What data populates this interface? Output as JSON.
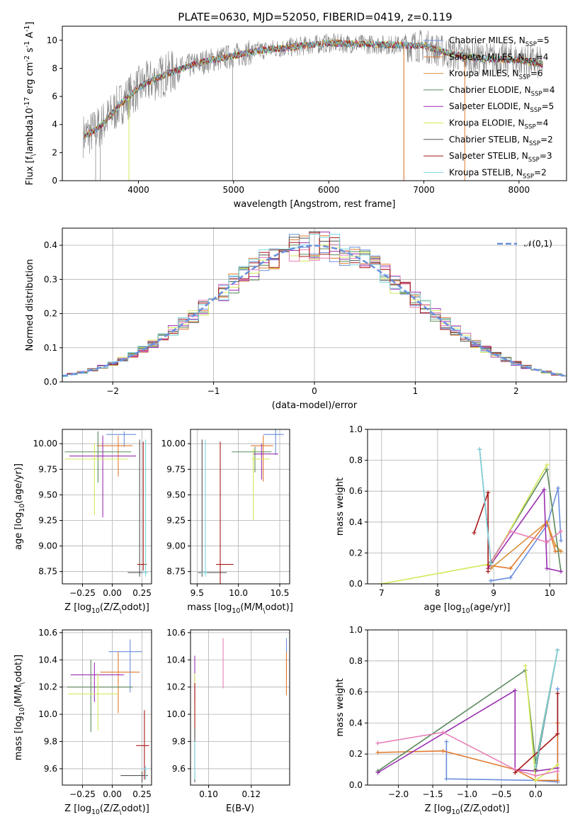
{
  "figure_title": "PLATE=0630, MJD=52050, FIBERID=0419, z=0.119",
  "colors": {
    "chabrier_miles": "#6a8fdc",
    "salpeter_miles": "#e07a2e",
    "kroupa_miles": "#d8913a",
    "chabrier_elodie": "#5c8a5c",
    "salpeter_elodie": "#9a2fb0",
    "kroupa_elodie": "#d4e85a",
    "chabrier_stelib": "#555555",
    "salpeter_stelib": "#a81818",
    "kroupa_stelib": "#7fd6e0",
    "data": "#808080",
    "pink": "#e87fb8",
    "gaussian": "#6a8fdc"
  },
  "legend": [
    {
      "name": "Chabrier MILES, N$_{SSP}$=5",
      "color_key": "chabrier_miles"
    },
    {
      "name": "Salpeter MILES, N$_{SSP}$=4",
      "color_key": "salpeter_miles"
    },
    {
      "name": "Kroupa MILES, N$_{SSP}$=6",
      "color_key": "kroupa_miles"
    },
    {
      "name": "Chabrier ELODIE, N$_{SSP}$=4",
      "color_key": "chabrier_elodie"
    },
    {
      "name": "Salpeter ELODIE, N$_{SSP}$=5",
      "color_key": "salpeter_elodie"
    },
    {
      "name": "Kroupa ELODIE, N$_{SSP}$=4",
      "color_key": "kroupa_elodie"
    },
    {
      "name": "Chabrier STELIB, N$_{SSP}$=2",
      "color_key": "chabrier_stelib"
    },
    {
      "name": "Salpeter STELIB, N$_{SSP}$=3",
      "color_key": "salpeter_stelib"
    },
    {
      "name": "Kroupa STELIB, N$_{SSP}$=2",
      "color_key": "kroupa_stelib"
    }
  ],
  "chart_data": [
    {
      "id": "spectrum",
      "type": "line",
      "xlabel": "wavelength [Angstrom, rest frame]",
      "ylabel": "Flux [f$_\\lambda$10$^{-17}$ erg cm$^{-2}$ s$^{-1}$ A$^{-1}$]",
      "xlim": [
        3200,
        8500
      ],
      "ylim": [
        0,
        11
      ],
      "xticks": [
        4000,
        5000,
        6000,
        7000,
        8000
      ],
      "yticks": [
        0,
        2,
        4,
        6,
        8,
        10
      ],
      "grid": false,
      "legend_position": "right",
      "model_continuum": {
        "x": [
          3420,
          3500,
          3600,
          3700,
          3800,
          3900,
          4000,
          4100,
          4300,
          4500,
          4700,
          5000,
          5300,
          5600,
          6000,
          6500,
          7000,
          7300,
          7600,
          8000,
          8250
        ],
        "y": [
          3.2,
          3.4,
          3.9,
          4.6,
          5.4,
          6.0,
          6.6,
          7.0,
          7.6,
          8.1,
          8.5,
          8.9,
          9.3,
          9.5,
          9.8,
          9.7,
          9.6,
          9.0,
          8.7,
          8.6,
          8.3
        ]
      }
    },
    {
      "id": "residuals",
      "type": "histogram",
      "xlabel": "(data-model)/error",
      "ylabel": "Normed distribution",
      "xlim": [
        -2.5,
        2.5
      ],
      "ylim": [
        0,
        0.45
      ],
      "xticks": [
        -2,
        -1,
        0,
        1,
        2
      ],
      "yticks": [
        0.0,
        0.1,
        0.2,
        0.3,
        0.4
      ],
      "grid": true,
      "bin_width": 0.1,
      "gaussian_label": "$\\mathcal{N}(0,1)$",
      "legend_position": "top-right"
    },
    {
      "id": "age_vs_Z",
      "type": "errorbar",
      "xlabel": "Z [log$_{10}$($Z/Z_\\odot$)]",
      "ylabel": "age  [log$_{10}$($age/yr$)]",
      "xlim": [
        -0.42,
        0.33
      ],
      "ylim": [
        8.63,
        10.14
      ],
      "xticks": [
        -0.25,
        0.0,
        0.25
      ],
      "yticks": [
        8.75,
        9.0,
        9.25,
        9.5,
        9.75,
        10.0
      ],
      "grid": true,
      "points": [
        {
          "c": "chabrier_miles",
          "x": 0.1,
          "y": 10.09,
          "xerr": [
            0.15,
            0.1
          ],
          "yerr": [
            0.12,
            0.03
          ]
        },
        {
          "c": "salpeter_miles",
          "x": 0.05,
          "y": 9.98,
          "xerr": [
            0.18,
            0.12
          ],
          "yerr": [
            0.3,
            0.1
          ]
        },
        {
          "c": "chabrier_elodie",
          "x": -0.12,
          "y": 9.92,
          "xerr": [
            0.28,
            0.28
          ],
          "yerr": [
            0.3,
            0.2
          ]
        },
        {
          "c": "salpeter_elodie",
          "x": -0.08,
          "y": 9.88,
          "xerr": [
            0.28,
            0.28
          ],
          "yerr": [
            0.6,
            0.2
          ]
        },
        {
          "c": "kroupa_elodie",
          "x": -0.15,
          "y": 9.85,
          "xerr": [
            0.25,
            0.28
          ],
          "yerr": [
            0.55,
            0.15
          ]
        },
        {
          "c": "chabrier_stelib",
          "x": 0.23,
          "y": 8.74,
          "xerr": [
            0.1,
            0.04
          ],
          "yerr": [
            0.04,
            1.3
          ]
        },
        {
          "c": "salpeter_stelib",
          "x": 0.26,
          "y": 8.82,
          "xerr": [
            0.05,
            0.03
          ],
          "yerr": [
            0.06,
            1.2
          ]
        },
        {
          "c": "kroupa_stelib",
          "x": 0.28,
          "y": 8.74,
          "xerr": [
            0.03,
            0.02
          ],
          "yerr": [
            0.04,
            1.3
          ]
        }
      ]
    },
    {
      "id": "age_vs_mass",
      "type": "errorbar",
      "xlabel": "mass [log$_{10}$($M/M_\\odot$)]",
      "ylabel": "",
      "xlim": [
        9.42,
        10.62
      ],
      "ylim": [
        8.63,
        10.14
      ],
      "xticks": [
        9.5,
        10.0,
        10.5
      ],
      "yticks": [
        8.75,
        9.0,
        9.25,
        9.5,
        9.75,
        10.0
      ],
      "grid": true,
      "points": [
        {
          "c": "chabrier_miles",
          "x": 10.45,
          "y": 10.09,
          "xerr": [
            0.15,
            0.1
          ],
          "yerr": [
            0.2,
            0.05
          ]
        },
        {
          "c": "salpeter_miles",
          "x": 10.3,
          "y": 9.98,
          "xerr": [
            0.15,
            0.12
          ],
          "yerr": [
            0.35,
            0.1
          ]
        },
        {
          "c": "chabrier_elodie",
          "x": 10.2,
          "y": 9.92,
          "xerr": [
            0.28,
            0.2
          ],
          "yerr": [
            0.2,
            0.05
          ]
        },
        {
          "c": "salpeter_elodie",
          "x": 10.28,
          "y": 9.9,
          "xerr": [
            0.1,
            0.2
          ],
          "yerr": [
            0.25,
            0.1
          ]
        },
        {
          "c": "kroupa_elodie",
          "x": 10.18,
          "y": 9.85,
          "xerr": [
            0.02,
            0.2
          ],
          "yerr": [
            0.6,
            0.1
          ]
        },
        {
          "c": "chabrier_stelib",
          "x": 9.56,
          "y": 8.74,
          "xerr": [
            0.05,
            0.3
          ],
          "yerr": [
            0.04,
            1.3
          ]
        },
        {
          "c": "salpeter_stelib",
          "x": 9.78,
          "y": 8.82,
          "xerr": [
            0.05,
            0.16
          ],
          "yerr": [
            0.25,
            1.2
          ]
        },
        {
          "c": "kroupa_stelib",
          "x": 9.6,
          "y": 8.74,
          "xerr": [
            0.05,
            0.02
          ],
          "yerr": [
            0.04,
            1.3
          ]
        }
      ]
    },
    {
      "id": "weight_vs_age",
      "type": "line",
      "xlabel": "age  [log$_{10}$($age/yr$)]",
      "ylabel": "mass weight",
      "xlim": [
        6.75,
        10.3
      ],
      "ylim": [
        0,
        1
      ],
      "xticks": [
        7,
        8,
        9,
        10
      ],
      "yticks": [
        0.0,
        0.2,
        0.4,
        0.6,
        0.8,
        1.0
      ],
      "grid": true,
      "series": [
        {
          "c": "chabrier_miles",
          "x": [
            8.95,
            9.3,
            9.95,
            10.15,
            10.2
          ],
          "y": [
            0.02,
            0.04,
            0.38,
            0.62,
            0.28
          ]
        },
        {
          "c": "salpeter_miles",
          "x": [
            8.9,
            9.3,
            9.95,
            10.1,
            10.2
          ],
          "y": [
            0.12,
            0.1,
            0.4,
            0.21,
            0.21
          ]
        },
        {
          "c": "kroupa_miles",
          "x": [
            8.95,
            9.95,
            10.1,
            10.2
          ],
          "y": [
            0.1,
            0.4,
            0.25,
            0.21
          ]
        },
        {
          "c": "chabrier_elodie",
          "x": [
            8.95,
            9.95,
            10.2
          ],
          "y": [
            0.14,
            0.74,
            0.08
          ]
        },
        {
          "c": "salpeter_elodie",
          "x": [
            8.9,
            9.9,
            9.95,
            10.2
          ],
          "y": [
            0.1,
            0.61,
            0.1,
            0.08
          ]
        },
        {
          "c": "kroupa_elodie",
          "x": [
            7.0,
            8.95,
            9.95
          ],
          "y": [
            0.0,
            0.13,
            0.77
          ]
        },
        {
          "c": "pink",
          "x": [
            8.95,
            9.3,
            9.95,
            10.2
          ],
          "y": [
            0.14,
            0.34,
            0.27,
            0.34
          ]
        },
        {
          "c": "salpeter_stelib",
          "x": [
            8.65,
            8.9,
            8.9
          ],
          "y": [
            0.33,
            0.59,
            0.08
          ]
        },
        {
          "c": "chabrier_stelib",
          "x": [
            8.75,
            8.95
          ],
          "y": [
            0.87,
            0.14
          ]
        },
        {
          "c": "kroupa_stelib",
          "x": [
            8.75,
            8.95
          ],
          "y": [
            0.87,
            0.13
          ]
        }
      ]
    },
    {
      "id": "mass_vs_Z",
      "type": "errorbar",
      "xlabel": "Z [log$_{10}$($Z/Z_\\odot$)]",
      "ylabel": "mass [log$_{10}$($M/M_\\odot$)]",
      "xlim": [
        -0.42,
        0.33
      ],
      "ylim": [
        9.48,
        10.62
      ],
      "xticks": [
        -0.25,
        0.0,
        0.25
      ],
      "yticks": [
        9.6,
        9.8,
        10.0,
        10.2,
        10.4,
        10.6
      ],
      "grid": true,
      "points": [
        {
          "c": "chabrier_miles",
          "x": 0.15,
          "y": 10.46,
          "xerr": [
            0.18,
            0.1
          ],
          "yerr": [
            0.3,
            0.09
          ]
        },
        {
          "c": "salpeter_miles",
          "x": 0.05,
          "y": 10.31,
          "xerr": [
            0.15,
            0.18
          ],
          "yerr": [
            0.3,
            0.15
          ]
        },
        {
          "c": "chabrier_elodie",
          "x": -0.18,
          "y": 10.2,
          "xerr": [
            0.2,
            0.35
          ],
          "yerr": [
            0.33,
            0.2
          ]
        },
        {
          "c": "salpeter_elodie",
          "x": -0.15,
          "y": 10.29,
          "xerr": [
            0.2,
            0.25
          ],
          "yerr": [
            0.2,
            0.09
          ]
        },
        {
          "c": "kroupa_elodie",
          "x": -0.12,
          "y": 10.15,
          "xerr": [
            0.25,
            0.17
          ],
          "yerr": [
            0.27,
            0.15
          ]
        },
        {
          "c": "chabrier_stelib",
          "x": 0.25,
          "y": 9.55,
          "xerr": [
            0.18,
            0.05
          ],
          "yerr": [
            0.05,
            0.03
          ]
        },
        {
          "c": "salpeter_stelib",
          "x": 0.27,
          "y": 9.77,
          "xerr": [
            0.07,
            0.04
          ],
          "yerr": [
            0.25,
            0.26
          ]
        },
        {
          "c": "kroupa_stelib",
          "x": 0.28,
          "y": 9.6,
          "xerr": [
            0.04,
            0.03
          ],
          "yerr": [
            0.08,
            0.02
          ]
        }
      ]
    },
    {
      "id": "mass_vs_ebv",
      "type": "errorbar",
      "xlabel": "E(B-V)",
      "ylabel": "",
      "xlim": [
        0.0915,
        0.138
      ],
      "ylim": [
        9.48,
        10.62
      ],
      "xticks": [
        0.1,
        0.12
      ],
      "yticks": [
        9.6,
        9.8,
        10.0,
        10.2,
        10.4,
        10.6
      ],
      "grid": true,
      "points": [
        {
          "c": "salpeter_elodie",
          "x": 0.0935,
          "y": 10.3,
          "xerr": [
            0,
            0
          ],
          "yerr": [
            0.2,
            0.13
          ]
        },
        {
          "c": "kroupa_elodie",
          "x": 0.0935,
          "y": 10.15,
          "xerr": [
            0,
            0
          ],
          "yerr": [
            0.3,
            0.15
          ]
        },
        {
          "c": "salpeter_stelib",
          "x": 0.0935,
          "y": 10.03,
          "xerr": [
            0,
            0
          ],
          "yerr": [
            0.2,
            0.2
          ]
        },
        {
          "c": "chabrier_stelib",
          "x": 0.0935,
          "y": 9.7,
          "xerr": [
            0,
            0
          ],
          "yerr": [
            0.2,
            0.2
          ]
        },
        {
          "c": "kroupa_stelib",
          "x": 0.0935,
          "y": 9.6,
          "xerr": [
            0,
            0
          ],
          "yerr": [
            0.08,
            0.2
          ]
        },
        {
          "c": "pink",
          "x": 0.1068,
          "y": 10.37,
          "xerr": [
            0,
            0
          ],
          "yerr": [
            0.18,
            0.19
          ]
        },
        {
          "c": "chabrier_miles",
          "x": 0.1365,
          "y": 10.46,
          "xerr": [
            0,
            0
          ],
          "yerr": [
            0.2,
            0.1
          ]
        },
        {
          "c": "salpeter_miles",
          "x": 0.1365,
          "y": 10.33,
          "xerr": [
            0,
            0
          ],
          "yerr": [
            0.19,
            0.13
          ]
        }
      ]
    },
    {
      "id": "weight_vs_Z",
      "type": "line",
      "xlabel": "Z [log$_{10}$($Z/Z_\\odot$)]",
      "ylabel": "mass weight",
      "xlim": [
        -2.45,
        0.45
      ],
      "ylim": [
        0,
        1
      ],
      "xticks": [
        -2.0,
        -1.5,
        -1.0,
        -0.5,
        0.0
      ],
      "yticks": [
        0.0,
        0.2,
        0.4,
        0.6,
        0.8,
        1.0
      ],
      "grid": true,
      "series": [
        {
          "c": "chabrier_miles",
          "x": [
            -1.3,
            -1.3,
            0.0,
            0.32,
            0.32
          ],
          "y": [
            0.28,
            0.04,
            0.03,
            0.02,
            0.62
          ]
        },
        {
          "c": "salpeter_miles",
          "x": [
            -2.3,
            -1.35,
            -0.3,
            0.0,
            0.32,
            0.32
          ],
          "y": [
            0.21,
            0.22,
            0.1,
            0.03,
            0.03,
            0.4
          ]
        },
        {
          "c": "chabrier_elodie",
          "x": [
            -2.3,
            -0.15,
            0.0,
            0.32
          ],
          "y": [
            0.09,
            0.74,
            0.14,
            0.87
          ]
        },
        {
          "c": "salpeter_elodie",
          "x": [
            -2.3,
            -0.3,
            -0.3,
            0.0,
            0.32
          ],
          "y": [
            0.08,
            0.61,
            0.1,
            0.09,
            0.11
          ]
        },
        {
          "c": "kroupa_elodie",
          "x": [
            -0.15,
            0.0,
            0.32
          ],
          "y": [
            0.77,
            0.03,
            0.13
          ]
        },
        {
          "c": "pink",
          "x": [
            -2.3,
            -1.35,
            -0.3,
            0.0,
            0.32
          ],
          "y": [
            0.27,
            0.34,
            0.1,
            0.06,
            0.09
          ]
        },
        {
          "c": "salpeter_stelib",
          "x": [
            -0.3,
            0.32,
            0.32
          ],
          "y": [
            0.08,
            0.33,
            0.59
          ]
        },
        {
          "c": "chabrier_stelib",
          "x": [
            0.0,
            0.32
          ],
          "y": [
            0.1,
            0.87
          ]
        },
        {
          "c": "kroupa_stelib",
          "x": [
            0.0,
            0.32
          ],
          "y": [
            0.12,
            0.87
          ]
        }
      ]
    }
  ]
}
